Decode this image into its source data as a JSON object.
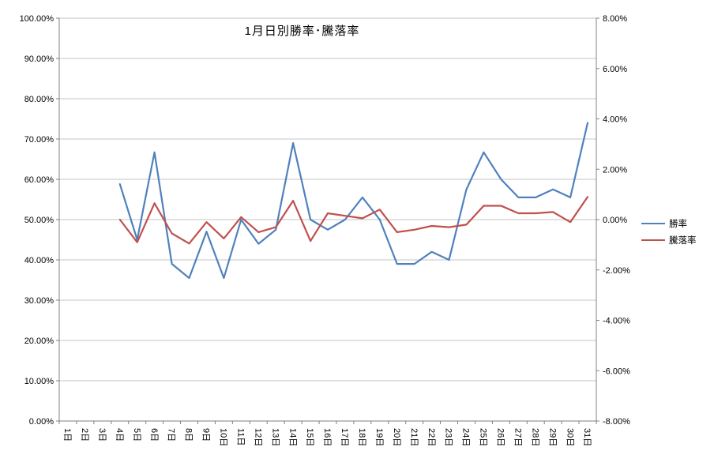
{
  "chart_data": {
    "type": "line",
    "title": "1月日別勝率･騰落率",
    "categories": [
      "1日",
      "2日",
      "3日",
      "4日",
      "5日",
      "6日",
      "7日",
      "8日",
      "9日",
      "10日",
      "11日",
      "12日",
      "13日",
      "14日",
      "15日",
      "16日",
      "17日",
      "18日",
      "19日",
      "20日",
      "21日",
      "22日",
      "23日",
      "24日",
      "25日",
      "26日",
      "27日",
      "28日",
      "29日",
      "30日",
      "31日"
    ],
    "series": [
      {
        "name": "勝率",
        "axis": "left",
        "color": "#4F81BD",
        "values": [
          null,
          null,
          null,
          58.8,
          45.0,
          66.7,
          39.0,
          35.5,
          47.0,
          35.5,
          50.0,
          44.0,
          47.5,
          69.0,
          50.0,
          47.5,
          50.0,
          55.5,
          50.0,
          39.0,
          39.0,
          42.0,
          40.0,
          57.5,
          66.7,
          60.0,
          55.5,
          55.5,
          57.5,
          55.5,
          74.0
        ]
      },
      {
        "name": "騰落率",
        "axis": "right",
        "color": "#C0504D",
        "values": [
          null,
          null,
          null,
          0.0,
          -0.9,
          0.65,
          -0.55,
          -0.95,
          -0.1,
          -0.75,
          0.1,
          -0.5,
          -0.3,
          0.75,
          -0.85,
          0.25,
          0.15,
          0.05,
          0.4,
          -0.5,
          -0.4,
          -0.25,
          -0.3,
          -0.2,
          0.55,
          0.55,
          0.25,
          0.25,
          0.3,
          -0.1,
          0.9
        ]
      }
    ],
    "left_axis": {
      "min": 0,
      "max": 100,
      "step": 10,
      "tick_labels": [
        "0.00%",
        "10.00%",
        "20.00%",
        "30.00%",
        "40.00%",
        "50.00%",
        "60.00%",
        "70.00%",
        "80.00%",
        "90.00%",
        "100.00%"
      ]
    },
    "right_axis": {
      "min": -8,
      "max": 8,
      "step": 2,
      "tick_labels": [
        "-8.00%",
        "-6.00%",
        "-4.00%",
        "-2.00%",
        "0.00%",
        "2.00%",
        "4.00%",
        "6.00%",
        "8.00%"
      ]
    },
    "legend": [
      "勝率",
      "騰落率"
    ],
    "legend_position": "right",
    "grid": true
  },
  "colors": {
    "series_win": "#4F81BD",
    "series_updown": "#C0504D",
    "gridline": "#C6C6C6",
    "axis": "#808080",
    "background": "#FFFFFF",
    "text": "#000000"
  }
}
